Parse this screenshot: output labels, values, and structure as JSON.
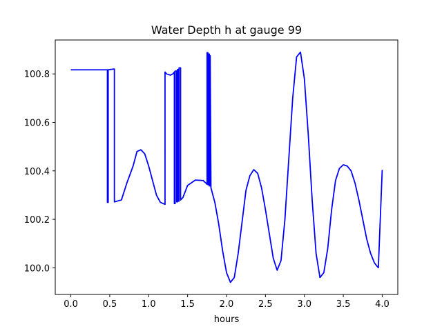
{
  "chart_data": {
    "type": "line",
    "title": "Water Depth h at gauge 99",
    "xlabel": "hours",
    "ylabel": "",
    "xlim": [
      -0.2,
      4.2
    ],
    "ylim": [
      99.89,
      100.94
    ],
    "xticks": [
      0.0,
      0.5,
      1.0,
      1.5,
      2.0,
      2.5,
      3.0,
      3.5,
      4.0
    ],
    "xtick_labels": [
      "0.0",
      "0.5",
      "1.0",
      "1.5",
      "2.0",
      "2.5",
      "3.0",
      "3.5",
      "4.0"
    ],
    "yticks": [
      100.0,
      100.2,
      100.4,
      100.6,
      100.8
    ],
    "ytick_labels": [
      "100.0",
      "100.2",
      "100.4",
      "100.6",
      "100.8"
    ],
    "grid": false,
    "series": [
      {
        "color": "#0000ff",
        "x": [
          0.0,
          0.47,
          0.47,
          0.48,
          0.48,
          0.55,
          0.56,
          0.56,
          0.65,
          0.72,
          0.8,
          0.85,
          0.9,
          0.95,
          1.0,
          1.05,
          1.1,
          1.15,
          1.21,
          1.21,
          1.23,
          1.28,
          1.31,
          1.33,
          1.33,
          1.34,
          1.34,
          1.36,
          1.36,
          1.37,
          1.37,
          1.38,
          1.38,
          1.39,
          1.39,
          1.41,
          1.41,
          1.44,
          1.5,
          1.6,
          1.7,
          1.75,
          1.75,
          1.76,
          1.76,
          1.77,
          1.77,
          1.78,
          1.78,
          1.79,
          1.79,
          1.8,
          1.85,
          1.9,
          1.95,
          2.0,
          2.05,
          2.1,
          2.15,
          2.2,
          2.25,
          2.3,
          2.35,
          2.4,
          2.45,
          2.5,
          2.55,
          2.6,
          2.65,
          2.7,
          2.75,
          2.8,
          2.85,
          2.9,
          2.95,
          3.0,
          3.05,
          3.1,
          3.15,
          3.2,
          3.25,
          3.3,
          3.35,
          3.4,
          3.45,
          3.5,
          3.55,
          3.6,
          3.65,
          3.7,
          3.75,
          3.8,
          3.85,
          3.9,
          3.95,
          4.0
        ],
        "values": [
          100.817,
          100.817,
          100.27,
          100.27,
          100.817,
          100.82,
          100.82,
          100.272,
          100.28,
          100.35,
          100.42,
          100.48,
          100.487,
          100.47,
          100.42,
          100.36,
          100.3,
          100.27,
          100.262,
          100.808,
          100.8,
          100.795,
          100.8,
          100.808,
          100.265,
          100.265,
          100.812,
          100.812,
          100.272,
          100.272,
          100.818,
          100.818,
          100.275,
          100.275,
          100.825,
          100.825,
          100.28,
          100.29,
          100.34,
          100.362,
          100.36,
          100.345,
          100.888,
          100.888,
          100.343,
          100.343,
          100.882,
          100.882,
          100.338,
          100.338,
          100.875,
          100.33,
          100.27,
          100.18,
          100.07,
          99.98,
          99.94,
          99.96,
          100.06,
          100.19,
          100.32,
          100.38,
          100.405,
          100.39,
          100.33,
          100.24,
          100.14,
          100.04,
          99.99,
          100.03,
          100.2,
          100.45,
          100.7,
          100.87,
          100.89,
          100.78,
          100.55,
          100.28,
          100.06,
          99.96,
          99.98,
          100.08,
          100.24,
          100.36,
          100.41,
          100.425,
          100.42,
          100.4,
          100.35,
          100.28,
          100.2,
          100.12,
          100.06,
          100.02,
          100.0,
          100.404
        ]
      }
    ]
  }
}
